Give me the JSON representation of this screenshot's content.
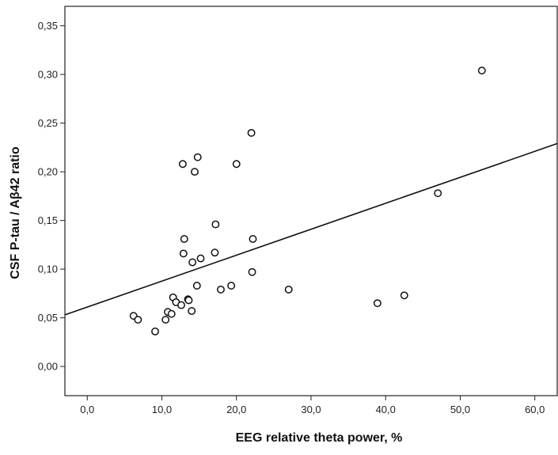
{
  "chart_data": {
    "type": "scatter",
    "title": "",
    "xlabel": "EEG relative theta power, %",
    "ylabel": "CSF P-tau / Aβ42 ratio",
    "xlim": [
      -3.0,
      63.0
    ],
    "ylim": [
      -0.03,
      0.37
    ],
    "x_ticks": [
      {
        "value": 0,
        "label": "0,0"
      },
      {
        "value": 10,
        "label": "10,0"
      },
      {
        "value": 20,
        "label": "20,0"
      },
      {
        "value": 30,
        "label": "30,0"
      },
      {
        "value": 40,
        "label": "40,0"
      },
      {
        "value": 50,
        "label": "50,0"
      },
      {
        "value": 60,
        "label": "60,0"
      }
    ],
    "y_ticks": [
      {
        "value": 0.0,
        "label": "0,00"
      },
      {
        "value": 0.05,
        "label": "0,05"
      },
      {
        "value": 0.1,
        "label": "0,10"
      },
      {
        "value": 0.15,
        "label": "0,15"
      },
      {
        "value": 0.2,
        "label": "0,20"
      },
      {
        "value": 0.25,
        "label": "0,25"
      },
      {
        "value": 0.3,
        "label": "0,30"
      },
      {
        "value": 0.35,
        "label": "0,35"
      }
    ],
    "grid": false,
    "legend": "none",
    "marker": "open-circle",
    "points": [
      {
        "x": 6.2,
        "y": 0.052
      },
      {
        "x": 6.8,
        "y": 0.048
      },
      {
        "x": 9.1,
        "y": 0.036
      },
      {
        "x": 10.5,
        "y": 0.048
      },
      {
        "x": 10.8,
        "y": 0.056
      },
      {
        "x": 11.3,
        "y": 0.054
      },
      {
        "x": 11.5,
        "y": 0.071
      },
      {
        "x": 11.9,
        "y": 0.066
      },
      {
        "x": 12.6,
        "y": 0.063
      },
      {
        "x": 12.8,
        "y": 0.208
      },
      {
        "x": 12.9,
        "y": 0.116
      },
      {
        "x": 13.0,
        "y": 0.131
      },
      {
        "x": 13.5,
        "y": 0.069
      },
      {
        "x": 13.6,
        "y": 0.068
      },
      {
        "x": 14.0,
        "y": 0.057
      },
      {
        "x": 14.1,
        "y": 0.107
      },
      {
        "x": 14.4,
        "y": 0.2
      },
      {
        "x": 14.7,
        "y": 0.083
      },
      {
        "x": 14.8,
        "y": 0.215
      },
      {
        "x": 15.2,
        "y": 0.111
      },
      {
        "x": 17.1,
        "y": 0.117
      },
      {
        "x": 17.2,
        "y": 0.146
      },
      {
        "x": 17.9,
        "y": 0.079
      },
      {
        "x": 19.3,
        "y": 0.083
      },
      {
        "x": 20.0,
        "y": 0.208
      },
      {
        "x": 22.0,
        "y": 0.24
      },
      {
        "x": 22.1,
        "y": 0.097
      },
      {
        "x": 22.2,
        "y": 0.131
      },
      {
        "x": 27.0,
        "y": 0.079
      },
      {
        "x": 38.9,
        "y": 0.065
      },
      {
        "x": 42.5,
        "y": 0.073
      },
      {
        "x": 47.0,
        "y": 0.178
      },
      {
        "x": 52.9,
        "y": 0.304
      }
    ],
    "fit_line": {
      "x": [
        -3.0,
        63.0
      ],
      "y": [
        0.053,
        0.229
      ]
    }
  }
}
